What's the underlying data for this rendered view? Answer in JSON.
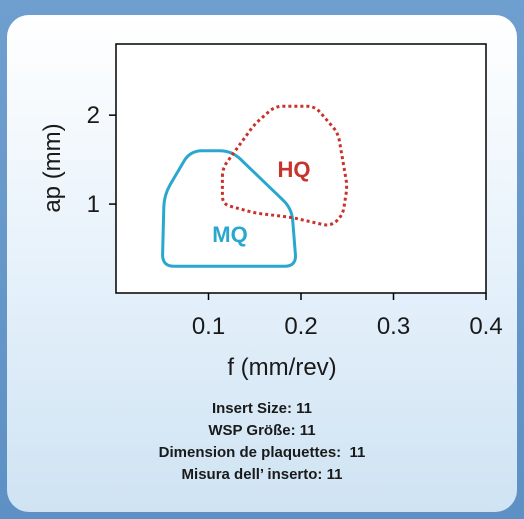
{
  "chart_data": {
    "type": "area",
    "xlabel": "f (mm/rev)",
    "ylabel": "ap (mm)",
    "xlim": [
      0,
      0.4
    ],
    "ylim": [
      0,
      2.8
    ],
    "x_ticks": [
      "0.1",
      "0.2",
      "0.3",
      "0.4"
    ],
    "y_ticks": [
      "1",
      "2"
    ],
    "grid": false,
    "regions": [
      {
        "label": "MQ",
        "color": "#2aa7cf",
        "style": "solid",
        "points": [
          [
            0.05,
            0.3
          ],
          [
            0.052,
            1.1
          ],
          [
            0.08,
            1.6
          ],
          [
            0.125,
            1.6
          ],
          [
            0.19,
            0.95
          ],
          [
            0.195,
            0.3
          ],
          [
            0.05,
            0.3
          ]
        ]
      },
      {
        "label": "HQ",
        "color": "#c8332b",
        "style": "dotted",
        "points": [
          [
            0.115,
            1.4
          ],
          [
            0.15,
            1.9
          ],
          [
            0.172,
            2.1
          ],
          [
            0.215,
            2.1
          ],
          [
            0.24,
            1.8
          ],
          [
            0.25,
            1.2
          ],
          [
            0.245,
            0.87
          ],
          [
            0.232,
            0.75
          ],
          [
            0.19,
            0.85
          ],
          [
            0.15,
            0.9
          ],
          [
            0.115,
            1.0
          ],
          [
            0.115,
            1.4
          ]
        ]
      }
    ]
  },
  "caption": {
    "line1": "Insert Size: 11",
    "line2": "WSP Größe: 11",
    "line3": "Dimension de plaquettes:  11",
    "line4": "Misura dell’ inserto: 11"
  }
}
